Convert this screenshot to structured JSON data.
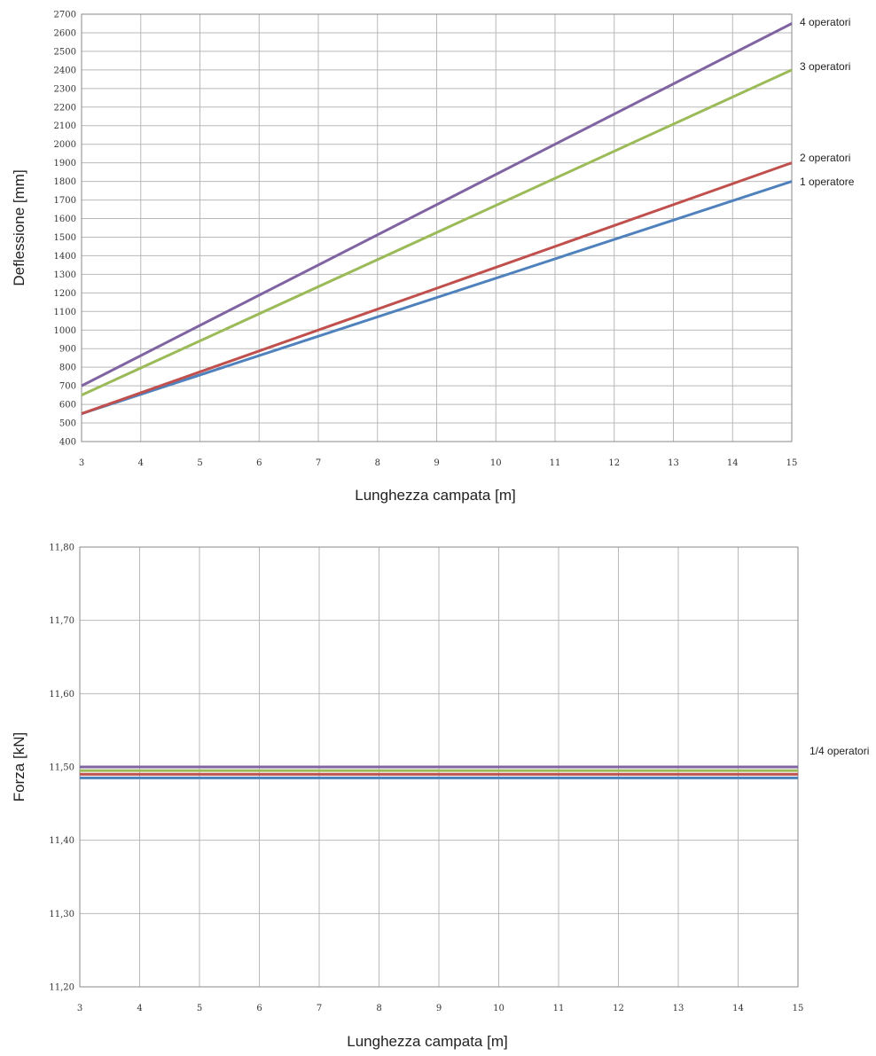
{
  "chart_data": [
    {
      "type": "line",
      "xlabel": "Lunghezza campata [m]",
      "ylabel": "Deflessione [mm]",
      "xlim": [
        3,
        15
      ],
      "ylim": [
        400,
        2700
      ],
      "x_ticks": [
        "3",
        "4",
        "5",
        "6",
        "7",
        "8",
        "9",
        "10",
        "11",
        "12",
        "13",
        "14",
        "15"
      ],
      "y_ticks": [
        "400",
        "500",
        "600",
        "700",
        "800",
        "900",
        "1000",
        "1100",
        "1200",
        "1300",
        "1400",
        "1500",
        "1600",
        "1700",
        "1800",
        "1900",
        "2000",
        "2100",
        "2200",
        "2300",
        "2400",
        "2500",
        "2600",
        "2700"
      ],
      "grid": true,
      "series": [
        {
          "name": "1 operatore",
          "color": "#4f81bd",
          "x": [
            3,
            15
          ],
          "y": [
            550,
            1800
          ]
        },
        {
          "name": "2 operatori",
          "color": "#c0504d",
          "x": [
            3,
            15
          ],
          "y": [
            550,
            1900
          ]
        },
        {
          "name": "3 operatori",
          "color": "#9bbb59",
          "x": [
            3,
            15
          ],
          "y": [
            650,
            2400
          ]
        },
        {
          "name": "4 operatori",
          "color": "#8064a2",
          "x": [
            3,
            15
          ],
          "y": [
            700,
            2650
          ]
        }
      ]
    },
    {
      "type": "line",
      "xlabel": "Lunghezza campata [m]",
      "ylabel": "Forza [kN]",
      "xlim": [
        3,
        15
      ],
      "ylim": [
        11.2,
        11.8
      ],
      "x_ticks": [
        "3",
        "4",
        "5",
        "6",
        "7",
        "8",
        "9",
        "10",
        "11",
        "12",
        "13",
        "14",
        "15"
      ],
      "y_ticks": [
        "11,20",
        "11,30",
        "11,40",
        "11,50",
        "11,60",
        "11,70",
        "11,80"
      ],
      "grid": true,
      "annotation": "1/4 operatori",
      "series": [
        {
          "color": "#8064a2",
          "x": [
            3,
            15
          ],
          "y": [
            11.5,
            11.5
          ]
        },
        {
          "color": "#9bbb59",
          "x": [
            3,
            15
          ],
          "y": [
            11.495,
            11.495
          ]
        },
        {
          "color": "#c0504d",
          "x": [
            3,
            15
          ],
          "y": [
            11.49,
            11.49
          ]
        },
        {
          "color": "#4f81bd",
          "x": [
            3,
            15
          ],
          "y": [
            11.485,
            11.485
          ]
        }
      ]
    }
  ]
}
